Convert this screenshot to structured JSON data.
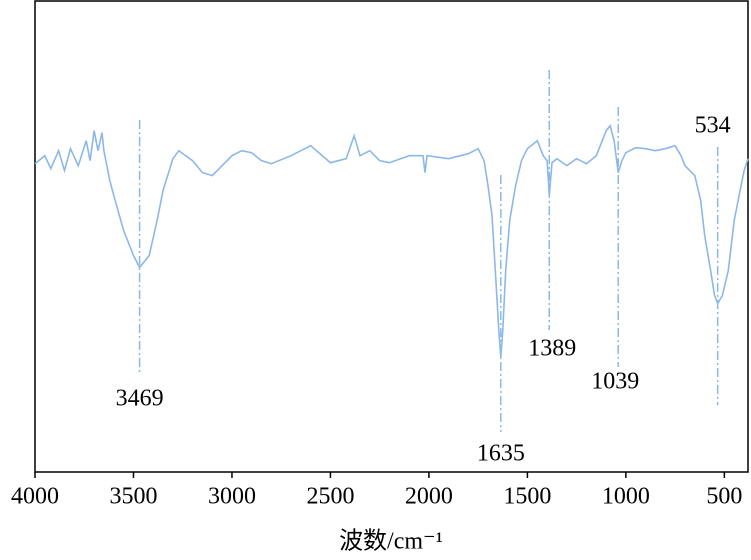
{
  "chart_data": {
    "type": "line",
    "xlabel": "波数/cm⁻¹",
    "x": [
      4000,
      3950,
      3920,
      3880,
      3850,
      3820,
      3780,
      3740,
      3720,
      3700,
      3680,
      3660,
      3650,
      3620,
      3600,
      3550,
      3500,
      3469,
      3420,
      3380,
      3350,
      3300,
      3270,
      3200,
      3150,
      3100,
      3050,
      3000,
      2950,
      2900,
      2850,
      2800,
      2700,
      2600,
      2500,
      2420,
      2380,
      2350,
      2300,
      2250,
      2200,
      2100,
      2030,
      2020,
      2010,
      1900,
      1800,
      1750,
      1720,
      1700,
      1680,
      1660,
      1645,
      1635,
      1625,
      1610,
      1590,
      1560,
      1530,
      1500,
      1450,
      1420,
      1400,
      1389,
      1375,
      1350,
      1300,
      1250,
      1200,
      1150,
      1100,
      1080,
      1060,
      1039,
      1020,
      1000,
      950,
      900,
      850,
      800,
      750,
      720,
      700,
      650,
      620,
      600,
      570,
      550,
      534,
      510,
      480,
      450,
      420,
      400,
      380
    ],
    "series": [
      {
        "color": "#8cb8e8",
        "values": [
          309,
          317,
          304,
          322,
          302,
          324,
          307,
          332,
          312,
          342,
          322,
          340,
          322,
          292,
          277,
          242,
          217,
          205,
          217,
          252,
          282,
          314,
          322,
          312,
          300,
          297,
          307,
          317,
          322,
          320,
          312,
          309,
          317,
          327,
          310,
          314,
          337,
          317,
          322,
          312,
          310,
          317,
          317,
          300,
          317,
          314,
          319,
          324,
          312,
          287,
          257,
          192,
          142,
          115,
          142,
          202,
          252,
          287,
          312,
          324,
          332,
          317,
          312,
          277,
          310,
          314,
          307,
          314,
          309,
          317,
          342,
          347,
          332,
          300,
          312,
          320,
          325,
          324,
          322,
          324,
          327,
          317,
          307,
          297,
          272,
          237,
          202,
          177,
          169,
          177,
          202,
          252,
          282,
          302,
          314
        ]
      }
    ],
    "xlim": [
      4000,
      380
    ],
    "ylim": [
      0,
      472
    ],
    "xticks": [
      4000,
      3500,
      3000,
      2500,
      2000,
      1500,
      1000,
      500
    ],
    "annotations": [
      3469,
      1635,
      1389,
      1039,
      534
    ]
  }
}
